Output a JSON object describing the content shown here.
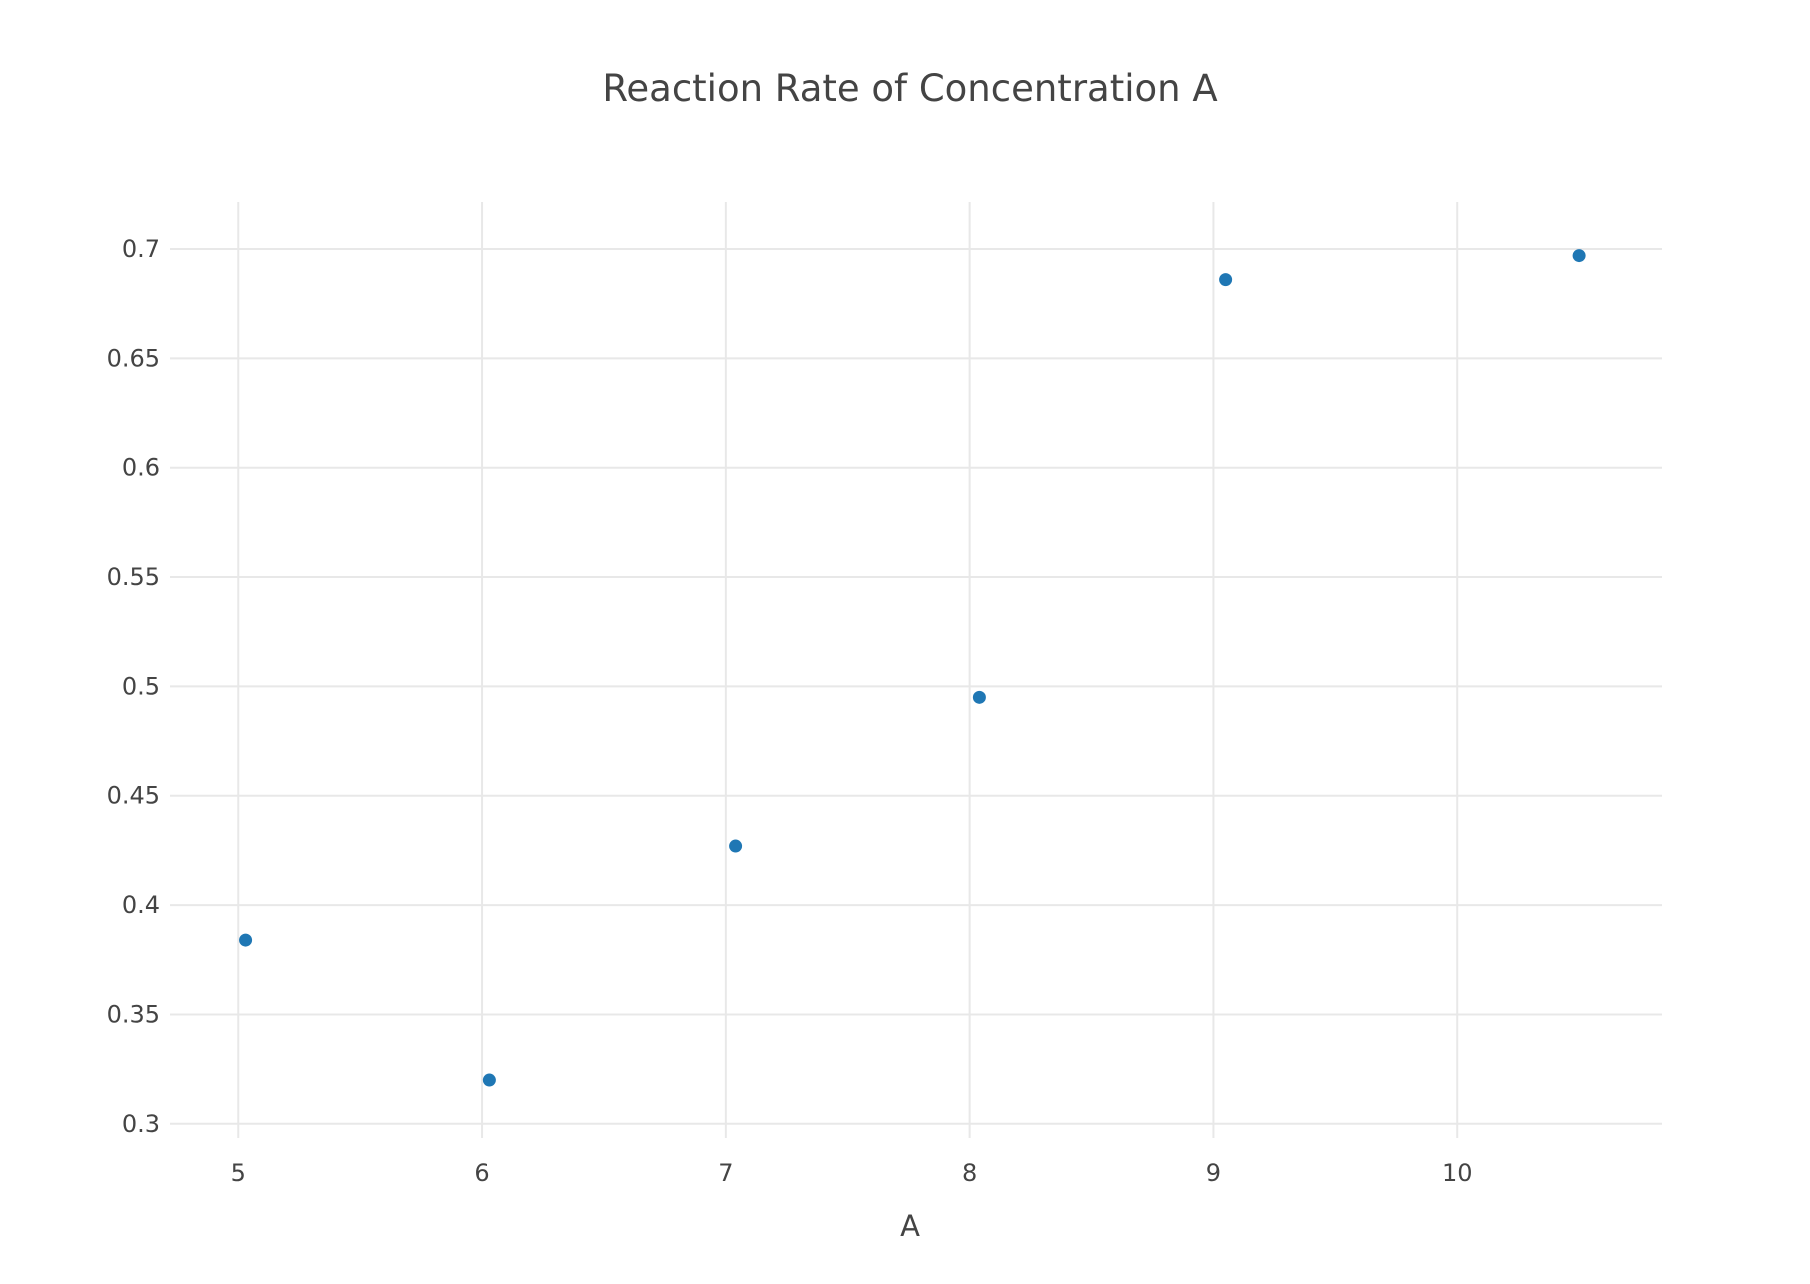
{
  "chart_data": {
    "type": "scatter",
    "title": "Reaction Rate of Concentration A",
    "xlabel": "A",
    "ylabel": "",
    "xlim": [
      4.72,
      10.84
    ],
    "ylim": [
      0.2935,
      0.7215
    ],
    "x_ticks": [
      5,
      6,
      7,
      8,
      9,
      10
    ],
    "y_ticks": [
      0.3,
      0.35,
      0.4,
      0.45,
      0.5,
      0.55,
      0.6,
      0.65,
      0.7
    ],
    "x_tick_labels": [
      "5",
      "6",
      "7",
      "8",
      "9",
      "10"
    ],
    "y_tick_labels": [
      "0.3",
      "0.35",
      "0.4",
      "0.45",
      "0.5",
      "0.55",
      "0.6",
      "0.65",
      "0.7"
    ],
    "grid": true,
    "legend": "none",
    "marker_color": "#1f77b4",
    "series": [
      {
        "points": [
          {
            "x": 5.03,
            "y": 0.384
          },
          {
            "x": 6.03,
            "y": 0.32
          },
          {
            "x": 7.04,
            "y": 0.427
          },
          {
            "x": 8.04,
            "y": 0.495
          },
          {
            "x": 9.05,
            "y": 0.686
          },
          {
            "x": 10.5,
            "y": 0.697
          }
        ]
      }
    ]
  }
}
